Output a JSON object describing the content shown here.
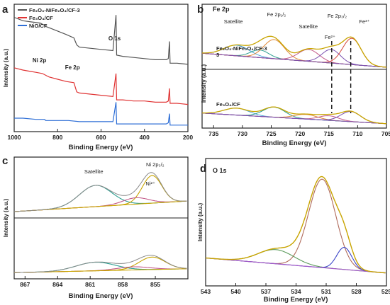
{
  "chart_data": [
    {
      "panel": "a",
      "type": "line",
      "xlabel": "Binding Energy (eV)",
      "ylabel": "Intensity (a.u.)",
      "xlim": [
        1000,
        200
      ],
      "xticks": [
        1000,
        800,
        600,
        400,
        200
      ],
      "series": [
        {
          "name": "Fe₂O₃-NiFe₂O₄/CF-3",
          "color": "#555555",
          "offset": 0.78,
          "points": [
            [
              1000,
              0.96
            ],
            [
              960,
              0.93
            ],
            [
              920,
              0.92
            ],
            [
              880,
              0.91
            ],
            [
              860,
              0.89
            ],
            [
              855,
              0.88
            ],
            [
              840,
              0.87
            ],
            [
              800,
              0.84
            ],
            [
              760,
              0.81
            ],
            [
              725,
              0.78
            ],
            [
              712,
              0.72
            ],
            [
              700,
              0.7
            ],
            [
              650,
              0.69
            ],
            [
              600,
              0.68
            ],
            [
              545,
              0.67
            ],
            [
              531,
              0.98
            ],
            [
              528,
              0.63
            ],
            [
              500,
              0.62
            ],
            [
              450,
              0.61
            ],
            [
              400,
              0.6
            ],
            [
              350,
              0.59
            ],
            [
              300,
              0.59
            ],
            [
              290,
              0.6
            ],
            [
              285,
              0.75
            ],
            [
              282,
              0.56
            ],
            [
              250,
              0.56
            ],
            [
              200,
              0.55
            ]
          ]
        },
        {
          "name": "Fe₃O₄/CF",
          "color": "#e03434",
          "offset": 0.44,
          "points": [
            [
              1000,
              0.52
            ],
            [
              960,
              0.5
            ],
            [
              930,
              0.49
            ],
            [
              900,
              0.48
            ],
            [
              870,
              0.47
            ],
            [
              860,
              0.46
            ],
            [
              850,
              0.45
            ],
            [
              840,
              0.44
            ],
            [
              800,
              0.42
            ],
            [
              760,
              0.4
            ],
            [
              725,
              0.39
            ],
            [
              712,
              0.31
            ],
            [
              700,
              0.3
            ],
            [
              650,
              0.29
            ],
            [
              600,
              0.28
            ],
            [
              545,
              0.27
            ],
            [
              531,
              0.47
            ],
            [
              528,
              0.24
            ],
            [
              500,
              0.24
            ],
            [
              450,
              0.23
            ],
            [
              400,
              0.23
            ],
            [
              350,
              0.22
            ],
            [
              300,
              0.22
            ],
            [
              290,
              0.23
            ],
            [
              285,
              0.34
            ],
            [
              282,
              0.21
            ],
            [
              250,
              0.21
            ],
            [
              200,
              0.2
            ]
          ]
        },
        {
          "name": "NiO/CF",
          "color": "#2f6fd6",
          "offset": 0.1,
          "points": [
            [
              1000,
              0.08
            ],
            [
              960,
              0.08
            ],
            [
              900,
              0.07
            ],
            [
              860,
              0.07
            ],
            [
              855,
              0.06
            ],
            [
              800,
              0.06
            ],
            [
              750,
              0.06
            ],
            [
              700,
              0.05
            ],
            [
              650,
              0.05
            ],
            [
              600,
              0.05
            ],
            [
              545,
              0.05
            ],
            [
              531,
              0.22
            ],
            [
              528,
              0.03
            ],
            [
              500,
              0.03
            ],
            [
              450,
              0.03
            ],
            [
              400,
              0.03
            ],
            [
              350,
              0.03
            ],
            [
              300,
              0.03
            ],
            [
              290,
              0.04
            ],
            [
              285,
              0.12
            ],
            [
              282,
              0.02
            ],
            [
              250,
              0.02
            ],
            [
              200,
              0.02
            ]
          ]
        }
      ],
      "annotations": [
        {
          "text": "O 1s",
          "x": 540
        },
        {
          "text": "Ni 2p",
          "x": 870
        },
        {
          "text": "Fe 2p",
          "x": 720
        }
      ]
    },
    {
      "panel": "b",
      "type": "line",
      "title": "Fe 2p",
      "xlabel": "Binding Energy (eV)",
      "ylabel": "Intensity (a.u.)",
      "xlim": [
        737,
        705
      ],
      "xticks": [
        735,
        730,
        725,
        720,
        715,
        710,
        705
      ],
      "samples": [
        "Fe₂O₃-NiFe₂O₄/CF-3",
        "Fe₃O₄/CF"
      ],
      "annotations": [
        {
          "text": "Satellite",
          "x": 731
        },
        {
          "text": "Fe 2p₁/₂",
          "x": 725
        },
        {
          "text": "Satellite",
          "x": 718.5
        },
        {
          "text": "Fe 2p₃/₂",
          "x": 714.5
        },
        {
          "text": "Fe³⁺",
          "x": 710
        },
        {
          "text": "Fe²⁺",
          "x": 715
        }
      ],
      "dashed_lines_x": [
        714.5,
        711.2
      ]
    },
    {
      "panel": "c",
      "type": "line",
      "xlabel": "Binding Energy (eV)",
      "ylabel": "Intensity (a.u.)",
      "xlim": [
        868,
        852
      ],
      "xticks": [
        867,
        864,
        861,
        858,
        855
      ],
      "annotations": [
        {
          "text": "Satellite",
          "x": 860.5
        },
        {
          "text": "Ni 2p₃/₂",
          "x": 855.2
        },
        {
          "text": "Ni²⁺",
          "x": 855.5
        }
      ]
    },
    {
      "panel": "d",
      "type": "line",
      "title": "O 1s",
      "xlabel": "Binding Energy (eV)",
      "ylabel": "Intensity (a.u.)",
      "xlim": [
        543,
        525
      ],
      "xticks": [
        543,
        540,
        537,
        534,
        531,
        528,
        525
      ]
    }
  ]
}
